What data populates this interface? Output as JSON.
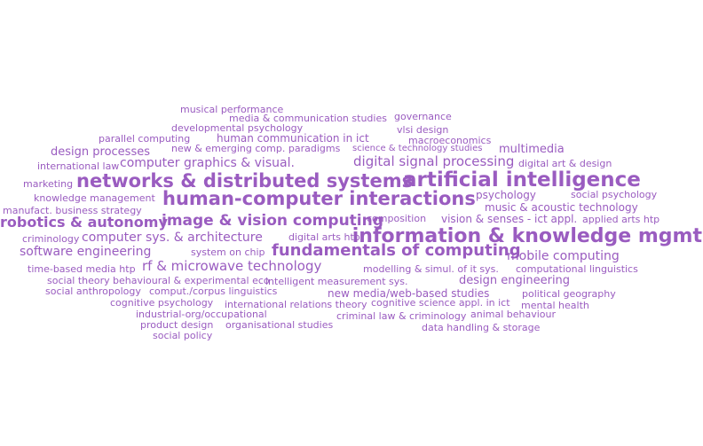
{
  "colors": {
    "word": "#9a5cc0",
    "background": "#ffffff"
  },
  "words": [
    "musical performance",
    "media & communication studies",
    "governance",
    "developmental psychology",
    "vlsi design",
    "parallel computing",
    "human communication in ict",
    "macroeconomics",
    "design processes",
    "new & emerging comp. paradigms",
    "science & technology studies",
    "multimedia",
    "international law",
    "computer graphics & visual.",
    "digital signal processing",
    "digital art & design",
    "marketing",
    "networks & distributed systems",
    "artificial intelligence",
    "knowledge management",
    "human-computer interactions",
    "psychology",
    "social psychology",
    "manufact. business strategy",
    "music & acoustic technology",
    "robotics & autonomy",
    "image & vision computing",
    "composition",
    "vision & senses - ict appl.",
    "applied arts htp",
    "criminology",
    "computer sys. & architecture",
    "digital arts htp",
    "information & knowledge mgmt",
    "software engineering",
    "system on chip",
    "fundamentals of computing",
    "mobile computing",
    "time-based media htp",
    "rf & microwave technology",
    "modelling & simul. of it sys.",
    "computational linguistics",
    "social theory",
    "behavioural & experimental eco",
    "intelligent measurement sys.",
    "design engineering",
    "social anthropology",
    "comput./corpus linguistics",
    "new media/web-based studies",
    "political geography",
    "cognitive psychology",
    "international relations theory",
    "cognitive science appl. in ict",
    "mental health",
    "industrial-org/occupational",
    "criminal law & criminology",
    "animal behaviour",
    "product design",
    "organisational studies",
    "data handling & storage",
    "social policy"
  ]
}
